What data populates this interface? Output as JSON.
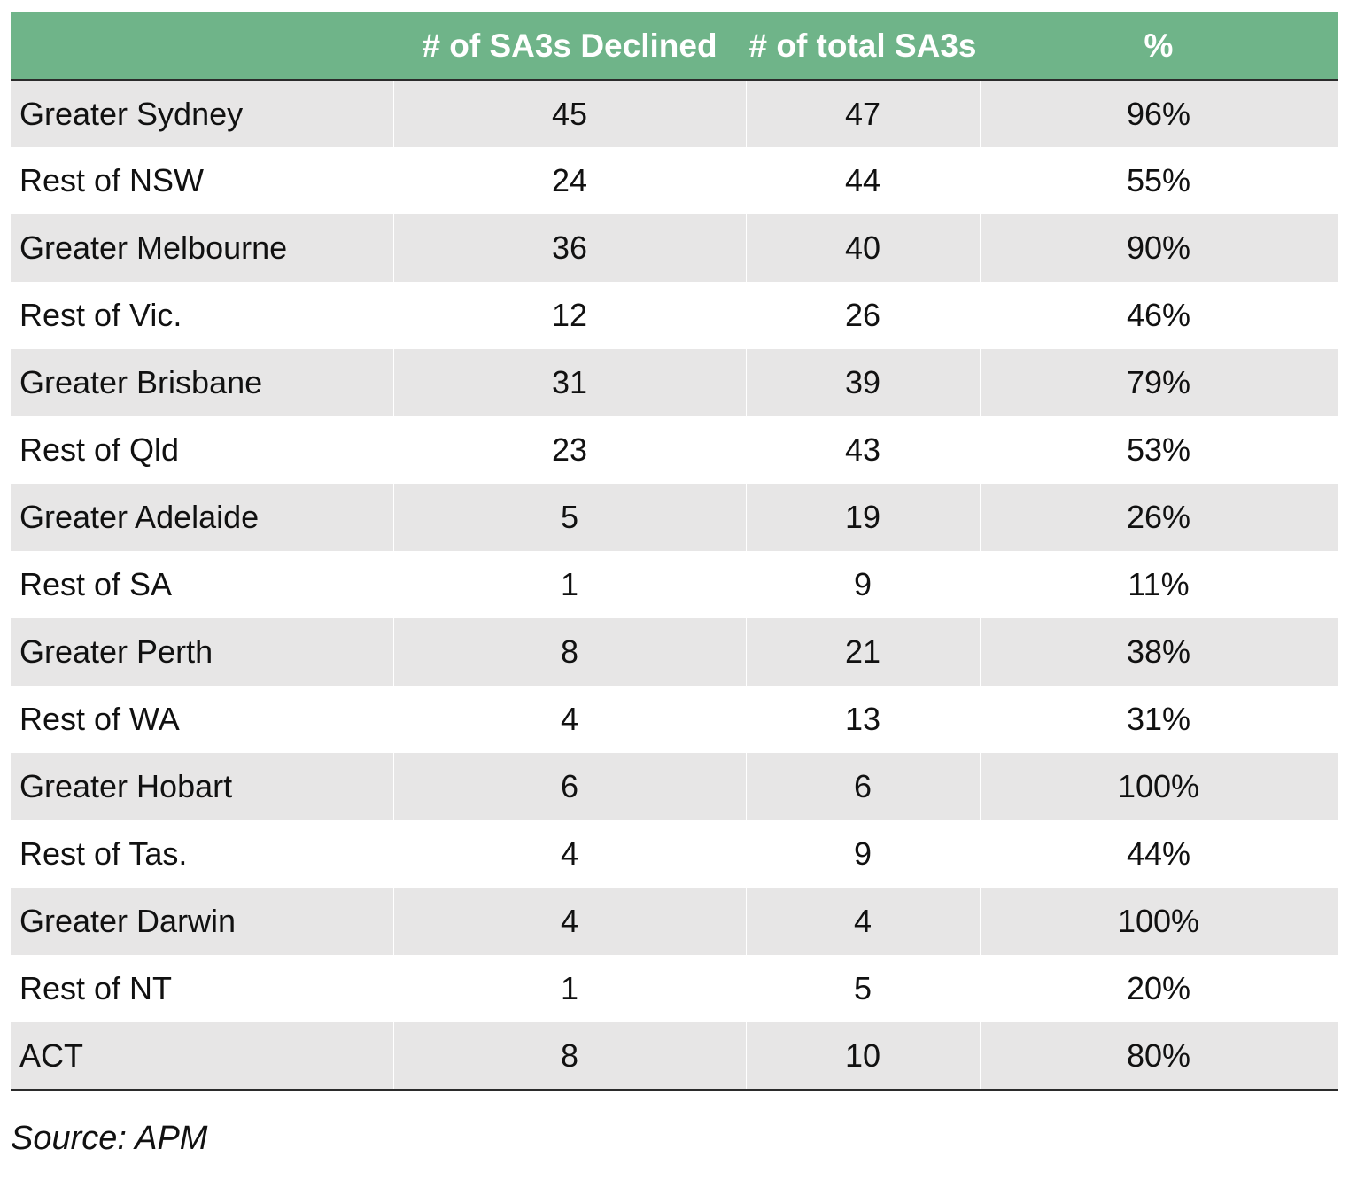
{
  "chart_data": {
    "type": "table",
    "columns": [
      "",
      "# of SA3s Declined",
      "# of total SA3s",
      "%"
    ],
    "rows": [
      {
        "region": "Greater Sydney",
        "declined": "45",
        "total": "47",
        "pct": "96%"
      },
      {
        "region": "Rest of NSW",
        "declined": "24",
        "total": "44",
        "pct": "55%"
      },
      {
        "region": "Greater Melbourne",
        "declined": "36",
        "total": "40",
        "pct": "90%"
      },
      {
        "region": "Rest of Vic.",
        "declined": "12",
        "total": "26",
        "pct": "46%"
      },
      {
        "region": "Greater Brisbane",
        "declined": "31",
        "total": "39",
        "pct": "79%"
      },
      {
        "region": "Rest of Qld",
        "declined": "23",
        "total": "43",
        "pct": "53%"
      },
      {
        "region": "Greater Adelaide",
        "declined": "5",
        "total": "19",
        "pct": "26%"
      },
      {
        "region": "Rest of SA",
        "declined": "1",
        "total": "9",
        "pct": "11%"
      },
      {
        "region": "Greater Perth",
        "declined": "8",
        "total": "21",
        "pct": "38%"
      },
      {
        "region": "Rest of WA",
        "declined": "4",
        "total": "13",
        "pct": "31%"
      },
      {
        "region": "Greater Hobart",
        "declined": "6",
        "total": "6",
        "pct": "100%"
      },
      {
        "region": "Rest of Tas.",
        "declined": "4",
        "total": "9",
        "pct": "44%"
      },
      {
        "region": "Greater Darwin",
        "declined": "4",
        "total": "4",
        "pct": "100%"
      },
      {
        "region": "Rest of NT",
        "declined": "1",
        "total": "5",
        "pct": "20%"
      },
      {
        "region": "ACT",
        "declined": "8",
        "total": "10",
        "pct": "80%"
      }
    ]
  },
  "source": "Source: APM",
  "colors": {
    "header_bg": "#6fb489",
    "header_text": "#ffffff",
    "shaded_row": "#e7e6e6",
    "rule": "#2b2b2b"
  }
}
